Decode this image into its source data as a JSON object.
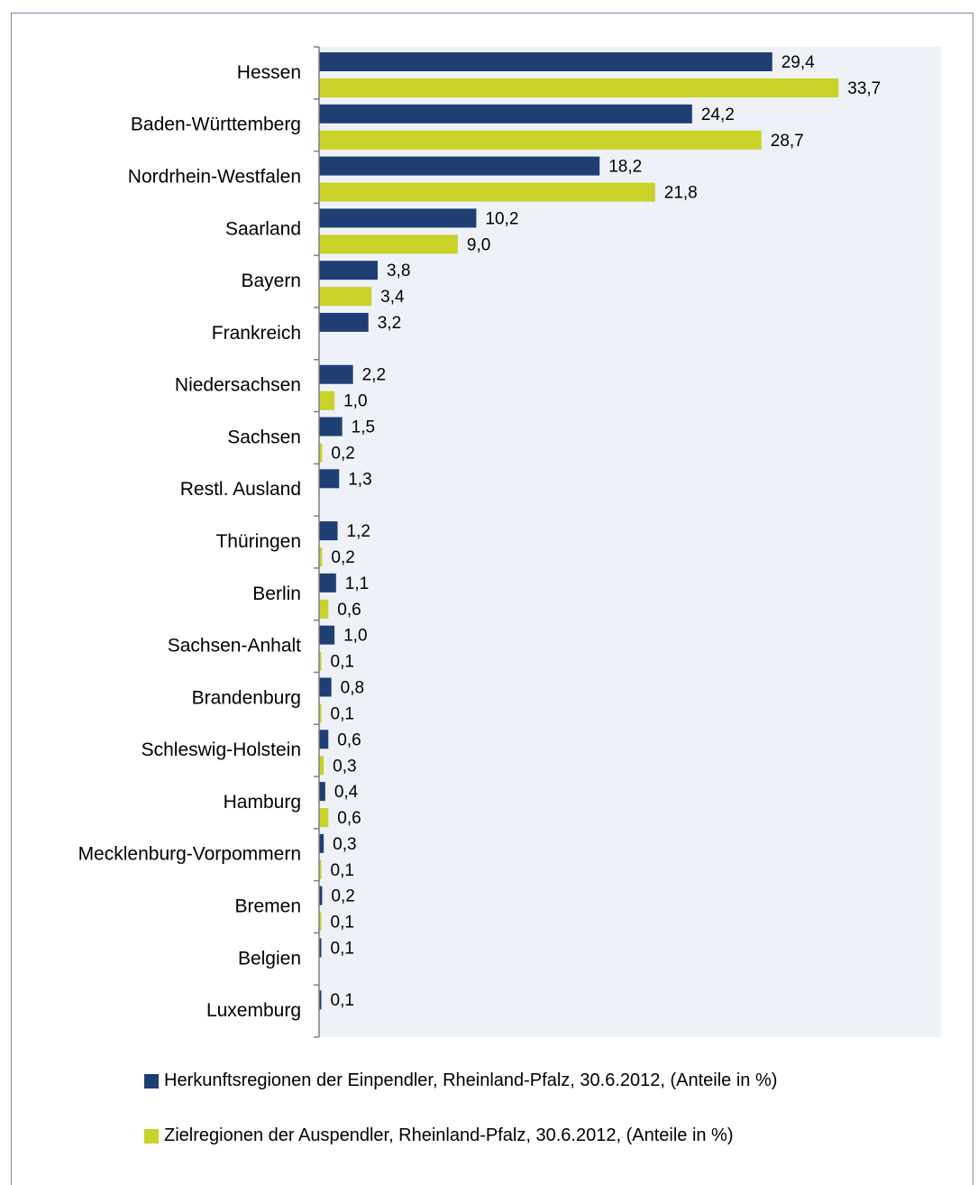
{
  "chart_data": {
    "type": "bar",
    "orientation": "horizontal",
    "categories": [
      "Hessen",
      "Baden-Württemberg",
      "Nordrhein-Westfalen",
      "Saarland",
      "Bayern",
      "Frankreich",
      "Niedersachsen",
      "Sachsen",
      "Restl. Ausland",
      "Thüringen",
      "Berlin",
      "Sachsen-Anhalt",
      "Brandenburg",
      "Schleswig-Holstein",
      "Hamburg",
      "Mecklenburg-Vorpommern",
      "Bremen",
      "Belgien",
      "Luxemburg"
    ],
    "series": [
      {
        "name": "Herkunftsregionen der Einpendler, Rheinland-Pfalz, 30.6.2012, (Anteile in %)",
        "color": "#1f3f74",
        "values": [
          29.4,
          24.2,
          18.2,
          10.2,
          3.8,
          3.2,
          2.2,
          1.5,
          1.3,
          1.2,
          1.1,
          1.0,
          0.8,
          0.6,
          0.4,
          0.3,
          0.2,
          0.1,
          0.1
        ],
        "labels": [
          "29,4",
          "24,2",
          "18,2",
          "10,2",
          "3,8",
          "3,2",
          "2,2",
          "1,5",
          "1,3",
          "1,2",
          "1,1",
          "1,0",
          "0,8",
          "0,6",
          "0,4",
          "0,3",
          "0,2",
          "0,1",
          "0,1"
        ]
      },
      {
        "name": "Zielregionen der Auspendler, Rheinland-Pfalz, 30.6.2012, (Anteile in %)",
        "color": "#c8d228",
        "values": [
          33.7,
          28.7,
          21.8,
          9.0,
          3.4,
          null,
          1.0,
          0.2,
          null,
          0.2,
          0.6,
          0.1,
          0.1,
          0.3,
          0.6,
          0.1,
          0.1,
          null,
          null
        ],
        "labels": [
          "33,7",
          "28,7",
          "21,8",
          "9,0",
          "3,4",
          "",
          "1,0",
          "0,2",
          "",
          "0,2",
          "0,6",
          "0,1",
          "0,1",
          "0,3",
          "0,6",
          "0,1",
          "0,1",
          "",
          ""
        ]
      }
    ],
    "xlim": [
      0,
      40
    ],
    "grid": false,
    "legend_position": "bottom",
    "plot_background": "#eef2f8"
  },
  "legend": {
    "items": [
      {
        "label": "Herkunftsregionen der Einpendler, Rheinland-Pfalz, 30.6.2012, (Anteile in %)",
        "color": "#1f3f74"
      },
      {
        "label": "Zielregionen der Auspendler, Rheinland-Pfalz, 30.6.2012, (Anteile in %)",
        "color": "#c8d228"
      }
    ]
  }
}
